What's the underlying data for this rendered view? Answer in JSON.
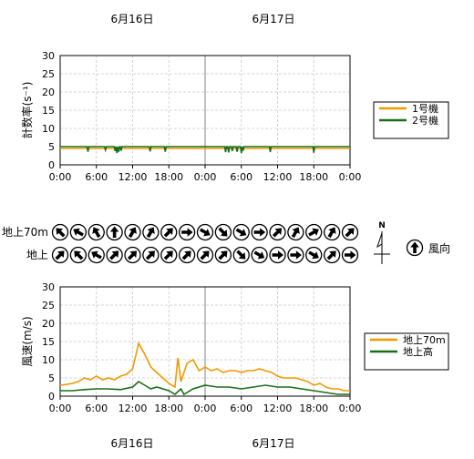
{
  "dates": [
    "6月16日",
    "6月17日"
  ],
  "time_labels": [
    "0:00",
    "6:00",
    "12:00",
    "18:00",
    "0:00",
    "6:00",
    "12:00",
    "18:00",
    "0:00"
  ],
  "chart_data": [
    {
      "type": "line",
      "ylabel": "計数率(s⁻¹)",
      "ylim": [
        0,
        30
      ],
      "yticks": [
        0,
        5,
        10,
        15,
        20,
        25,
        30
      ],
      "xlim_hours": [
        0,
        48
      ],
      "grid": true,
      "legend_position": "right",
      "series": [
        {
          "name": "1号機",
          "color": "#f39800",
          "x_hours": [
            0,
            48
          ],
          "values": [
            4.5,
            4.5
          ]
        },
        {
          "name": "2号機",
          "color": "#1a6e1a",
          "baseline": 5.0,
          "dips": [
            {
              "hour": 4.6,
              "value": 3.6
            },
            {
              "hour": 7.5,
              "value": 4.1
            },
            {
              "hour": 9.1,
              "value": 3.8
            },
            {
              "hour": 9.4,
              "value": 3.2
            },
            {
              "hour": 9.7,
              "value": 3.6
            },
            {
              "hour": 10.1,
              "value": 3.9
            },
            {
              "hour": 14.9,
              "value": 3.7
            },
            {
              "hour": 17.4,
              "value": 3.6
            },
            {
              "hour": 27.4,
              "value": 3.5
            },
            {
              "hour": 27.9,
              "value": 3.4
            },
            {
              "hour": 28.5,
              "value": 3.8
            },
            {
              "hour": 29.3,
              "value": 3.6
            },
            {
              "hour": 30.0,
              "value": 3.2
            },
            {
              "hour": 30.3,
              "value": 3.9
            },
            {
              "hour": 34.8,
              "value": 3.5
            },
            {
              "hour": 42.0,
              "value": 3.3
            }
          ]
        }
      ]
    },
    {
      "type": "direction_rows",
      "legend_label": "風向",
      "compass_label": "N",
      "rows": [
        {
          "label": "地上70m",
          "angles": [
            315,
            300,
            330,
            0,
            30,
            30,
            45,
            90,
            120,
            135,
            120,
            90,
            45,
            30,
            60,
            30,
            45,
            45,
            90,
            135,
            120,
            135,
            135,
            90,
            120,
            315,
            135,
            120,
            45,
            135
          ]
        },
        {
          "label": "地上",
          "angles": [
            45,
            315,
            300,
            45,
            45,
            45,
            45,
            45,
            45,
            45,
            135,
            120,
            90,
            90,
            120,
            45,
            90,
            45,
            45,
            45,
            45,
            45,
            120,
            135,
            120,
            135,
            90,
            120,
            135,
            120,
            150
          ]
        }
      ]
    },
    {
      "type": "line",
      "ylabel": "風速(m/s)",
      "ylim": [
        0,
        30
      ],
      "yticks": [
        0,
        5,
        10,
        15,
        20,
        25,
        30
      ],
      "xlim_hours": [
        0,
        48
      ],
      "grid": true,
      "legend_position": "right",
      "series": [
        {
          "name": "地上70m",
          "color": "#f39800",
          "x_hours": [
            0,
            1,
            2,
            3,
            4,
            5,
            6,
            7,
            8,
            9,
            10,
            11,
            12,
            12.5,
            13,
            13.5,
            14,
            15,
            16,
            17,
            18,
            19,
            19.5,
            20,
            20.5,
            21,
            22,
            23,
            24,
            25,
            26,
            27,
            28,
            29,
            30,
            31,
            32,
            33,
            34,
            35,
            36,
            37,
            38,
            39,
            40,
            41,
            42,
            43,
            44,
            45,
            46,
            47,
            48
          ],
          "values": [
            3,
            3.2,
            3.5,
            4,
            5,
            4.5,
            5.5,
            4.5,
            5,
            4.5,
            5.5,
            6,
            7.5,
            11,
            14.5,
            13,
            11.5,
            8,
            6.5,
            5,
            3.5,
            2.5,
            10.5,
            4,
            6.5,
            9,
            10,
            7,
            8,
            7,
            7.5,
            6.5,
            7,
            7,
            6.5,
            7,
            7,
            7.5,
            7,
            6.5,
            5.5,
            5,
            5,
            5,
            4.5,
            4,
            3,
            3.5,
            2.5,
            2,
            2,
            1.5,
            1.5
          ]
        },
        {
          "name": "地上高",
          "color": "#1a6e1a",
          "x_hours": [
            0,
            2,
            4,
            6,
            8,
            10,
            12,
            13,
            14,
            15,
            16,
            18,
            19,
            20,
            20.5,
            22,
            24,
            26,
            28,
            30,
            32,
            34,
            36,
            38,
            40,
            42,
            44,
            46,
            48
          ],
          "values": [
            1.5,
            1.5,
            1.8,
            2,
            2,
            1.8,
            2.5,
            4,
            3,
            2,
            2.5,
            1.5,
            0.5,
            2,
            0.5,
            2,
            3,
            2.5,
            2.5,
            2,
            2.5,
            3,
            2.5,
            2.5,
            2,
            1.5,
            1,
            0.5,
            0.5
          ]
        }
      ]
    }
  ]
}
